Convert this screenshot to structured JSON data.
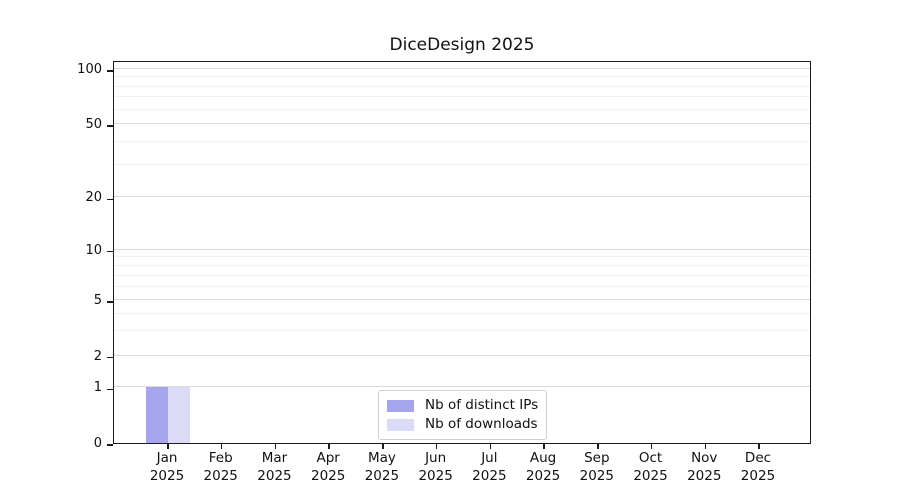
{
  "chart_data": {
    "type": "bar",
    "title": "DiceDesign 2025",
    "categories": [
      "Jan",
      "Feb",
      "Mar",
      "Apr",
      "May",
      "Jun",
      "Jul",
      "Aug",
      "Sep",
      "Oct",
      "Nov",
      "Dec"
    ],
    "x_year_label": "2025",
    "series": [
      {
        "name": "Nb of distinct IPs",
        "color": "#a5a5ee",
        "values": [
          1,
          0,
          0,
          0,
          0,
          0,
          0,
          0,
          0,
          0,
          0,
          0
        ]
      },
      {
        "name": "Nb of downloads",
        "color": "#dbdbf7",
        "values": [
          1,
          0,
          0,
          0,
          0,
          0,
          0,
          0,
          0,
          0,
          0,
          0
        ]
      }
    ],
    "xlabel": "",
    "ylabel": "",
    "yscale": "symlog",
    "yticks": [
      0,
      1,
      2,
      5,
      10,
      20,
      50,
      100
    ],
    "ylim": [
      0,
      115
    ],
    "grid": "horizontal major and minor, on",
    "legend_position": "lower center inside plot",
    "layout": {
      "y_major_lines": [
        {
          "v": 1,
          "f": 0.1454
        },
        {
          "v": 2,
          "f": 0.2279
        },
        {
          "v": 5,
          "f": 0.3734
        },
        {
          "v": 10,
          "f": 0.5047
        },
        {
          "v": 20,
          "f": 0.6415
        },
        {
          "v": 50,
          "f": 0.8329
        },
        {
          "v": 100,
          "f": 0.9765
        }
      ],
      "y_minor_lines": [
        {
          "v": 3,
          "f": 0.2923
        },
        {
          "v": 4,
          "f": 0.338
        },
        {
          "v": 6,
          "f": 0.408
        },
        {
          "v": 7,
          "f": 0.4371
        },
        {
          "v": 8,
          "f": 0.4624
        },
        {
          "v": 9,
          "f": 0.4847
        },
        {
          "v": 30,
          "f": 0.7262
        },
        {
          "v": 40,
          "f": 0.7863
        },
        {
          "v": 60,
          "f": 0.8707
        },
        {
          "v": 70,
          "f": 0.9026
        },
        {
          "v": 80,
          "f": 0.9303
        },
        {
          "v": 90,
          "f": 0.9547
        }
      ]
    },
    "colors": {
      "major_grid": "#d9d9d9",
      "minor_grid": "#f0f0f0",
      "spine": "#1b1b1b",
      "legend_border": "#cfcfcf",
      "background": "#ffffff"
    }
  }
}
